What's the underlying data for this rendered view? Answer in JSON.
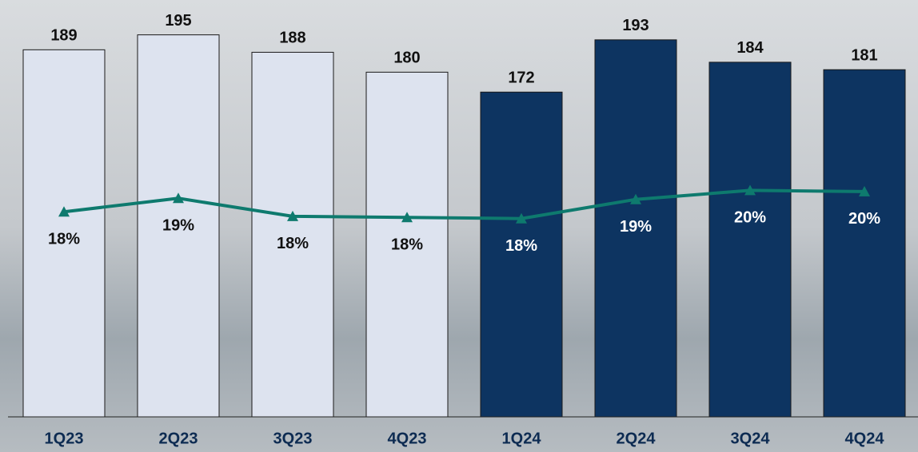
{
  "chart_data": {
    "type": "bar",
    "categories": [
      "1Q23",
      "2Q23",
      "3Q23",
      "4Q23",
      "1Q24",
      "2Q24",
      "3Q24",
      "4Q24"
    ],
    "series": [
      {
        "type": "bar",
        "values": [
          189,
          195,
          188,
          180,
          172,
          193,
          184,
          181
        ],
        "colors": [
          "#dde3ef",
          "#dde3ef",
          "#dde3ef",
          "#dde3ef",
          "#0d3461",
          "#0d3461",
          "#0d3461",
          "#0d3461"
        ]
      },
      {
        "type": "line",
        "axis": "y2",
        "color": "#0e7a6e",
        "values": [
          18.2,
          19.4,
          17.8,
          17.7,
          17.6,
          19.3,
          20.1,
          20.0
        ],
        "value_labels": [
          "18%",
          "19%",
          "18%",
          "18%",
          "18%",
          "19%",
          "20%",
          "20%"
        ]
      }
    ],
    "ylim": [
      41.5,
      209
    ],
    "y2lim": [
      0,
      37
    ]
  }
}
